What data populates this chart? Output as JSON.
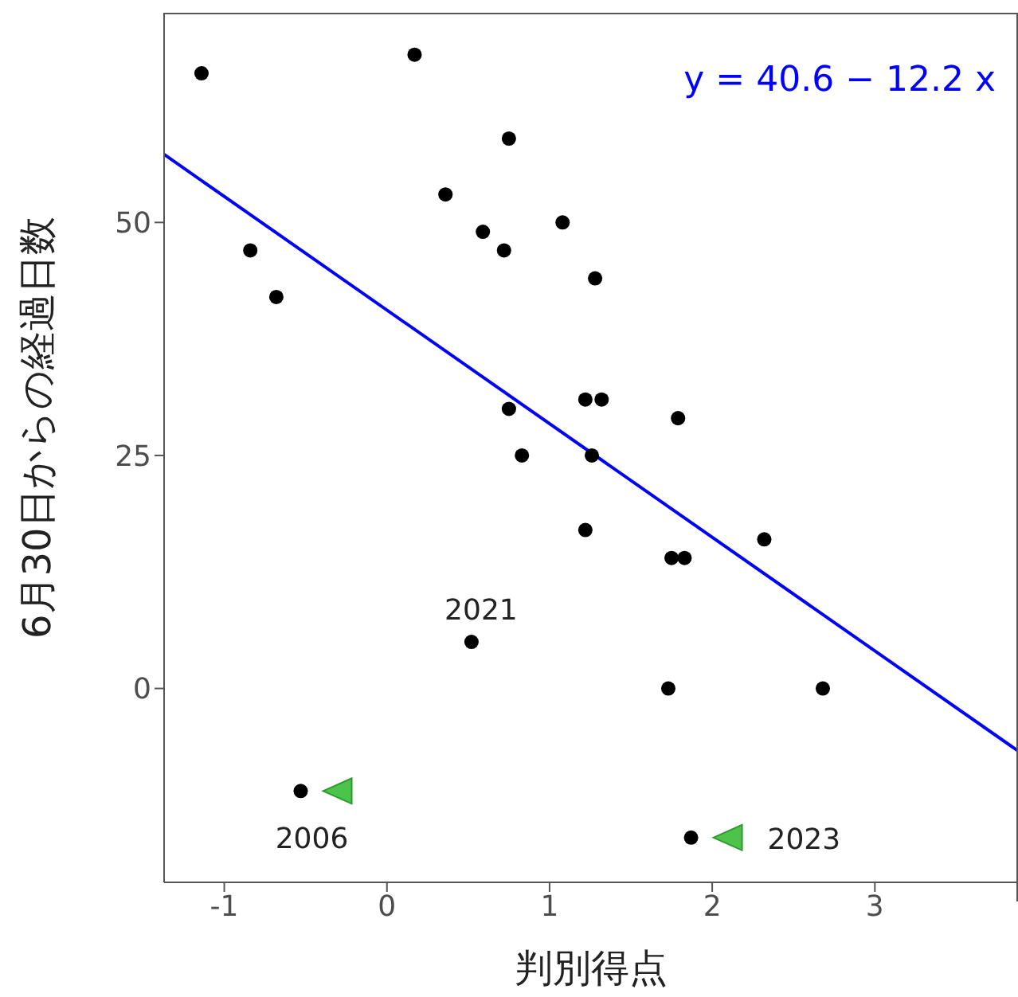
{
  "chart_data": {
    "type": "scatter",
    "xlabel": "判別得点",
    "ylabel": "6月30日からの経過日数",
    "xlim": [
      -1.37,
      3.88
    ],
    "ylim": [
      -20.8,
      72.5
    ],
    "xticks": [
      -1,
      0,
      1,
      2,
      3
    ],
    "yticks": [
      0,
      25,
      50
    ],
    "grid": false,
    "annotations": [
      "y = 40.6 − 12.2 x",
      {
        "text": "2021",
        "x": 0.52,
        "y": 5
      },
      {
        "text": "2006",
        "x": -0.53,
        "y": -11
      },
      {
        "text": "2023",
        "x": 1.87,
        "y": -16
      }
    ],
    "series": [
      {
        "color": "#000000",
        "marker": "circle",
        "x": [
          -1.14,
          0.17,
          -0.84,
          -0.68,
          0.36,
          0.75,
          0.59,
          0.72,
          1.08,
          1.28,
          1.22,
          1.32,
          0.75,
          0.83,
          1.26,
          1.79,
          1.22,
          1.75,
          1.83,
          2.32,
          0.52,
          1.73,
          2.68,
          -0.53,
          1.87
        ],
        "values": [
          66,
          68,
          47,
          42,
          53,
          59,
          49,
          47,
          50,
          44,
          31,
          31,
          30,
          25,
          25,
          29,
          17,
          14,
          14,
          16,
          5,
          0,
          0,
          -11,
          -16
        ]
      },
      {
        "type": "line",
        "color": "#0000ff",
        "x": [
          -1.37,
          3.88
        ],
        "values": [
          57.3,
          -6.7
        ],
        "line_style": "solid"
      }
    ]
  }
}
